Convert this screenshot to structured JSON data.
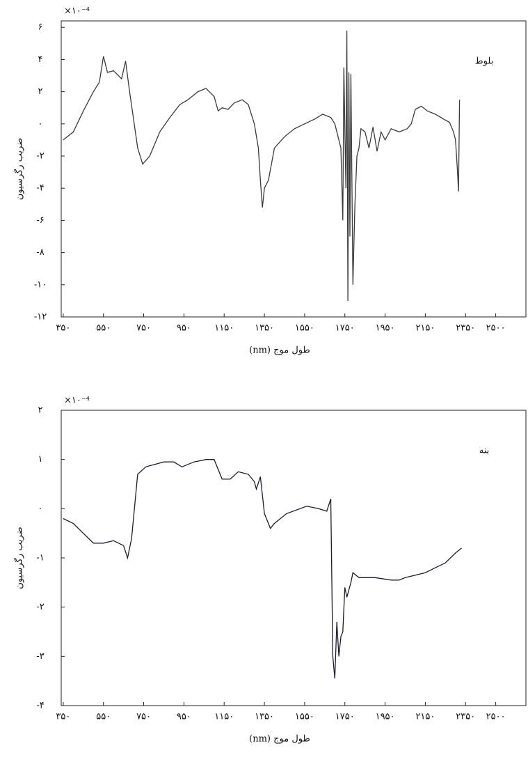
{
  "chart_data": [
    {
      "type": "line",
      "annotation": "بلوط",
      "multiplier": "×۱۰⁻⁴",
      "x_label": "طول موج (nm)",
      "y_label": "ضریب رگرسیون",
      "color": "#3a3a3a",
      "xlim": [
        340,
        2650
      ],
      "ylim": [
        -12,
        6.4
      ],
      "xticks": [
        {
          "value": 350,
          "label": "۳۵۰"
        },
        {
          "value": 550,
          "label": "۵۵۰"
        },
        {
          "value": 750,
          "label": "۷۵۰"
        },
        {
          "value": 950,
          "label": "۹۵۰"
        },
        {
          "value": 1150,
          "label": "۱۱۵۰"
        },
        {
          "value": 1350,
          "label": "۱۳۵۰"
        },
        {
          "value": 1550,
          "label": "۱۵۵۰"
        },
        {
          "value": 1750,
          "label": "۱۷۵۰"
        },
        {
          "value": 1950,
          "label": "۱۹۵۰"
        },
        {
          "value": 2150,
          "label": "۲۱۵۰"
        },
        {
          "value": 2350,
          "label": "۲۳۵۰"
        },
        {
          "value": 2500,
          "label": "۲۵۰۰"
        }
      ],
      "yticks": [
        {
          "value": 6,
          "label": "۶"
        },
        {
          "value": 4,
          "label": "۴"
        },
        {
          "value": 2,
          "label": "۲"
        },
        {
          "value": 0,
          "label": "۰"
        },
        {
          "value": -2,
          "label": "-۲"
        },
        {
          "value": -4,
          "label": "-۴"
        },
        {
          "value": -6,
          "label": "-۶"
        },
        {
          "value": -8,
          "label": "-۸"
        },
        {
          "value": -10,
          "label": "-۱۰"
        },
        {
          "value": -12,
          "label": "-۱۲"
        }
      ],
      "x": [
        350,
        400,
        450,
        500,
        530,
        550,
        570,
        600,
        640,
        660,
        680,
        720,
        745,
        780,
        830,
        880,
        930,
        970,
        1020,
        1060,
        1100,
        1120,
        1140,
        1170,
        1200,
        1240,
        1270,
        1300,
        1320,
        1330,
        1340,
        1350,
        1370,
        1400,
        1450,
        1500,
        1550,
        1600,
        1640,
        1680,
        1700,
        1730,
        1740,
        1745,
        1755,
        1760,
        1765,
        1770,
        1775,
        1780,
        1790,
        1800,
        1810,
        1820,
        1830,
        1850,
        1870,
        1890,
        1910,
        1930,
        1950,
        1980,
        2020,
        2060,
        2080,
        2100,
        2130,
        2160,
        2200,
        2240,
        2270,
        2290,
        2300,
        2310,
        2315,
        2320
      ],
      "values": [
        -1.0,
        -0.5,
        0.8,
        2.0,
        2.6,
        4.2,
        3.2,
        3.3,
        2.8,
        3.9,
        2.0,
        -1.5,
        -2.5,
        -2.0,
        -0.5,
        0.4,
        1.2,
        1.5,
        2.0,
        2.2,
        1.7,
        0.8,
        1.0,
        0.9,
        1.3,
        1.5,
        1.2,
        0.0,
        -1.5,
        -3.5,
        -5.2,
        -4.0,
        -3.5,
        -1.5,
        -0.8,
        -0.3,
        0.0,
        0.3,
        0.6,
        0.4,
        0.0,
        -1.5,
        -6.0,
        3.5,
        -4.0,
        5.8,
        -11.0,
        3.2,
        -7.0,
        3.1,
        -10.0,
        -5.0,
        -2.0,
        -1.5,
        -0.3,
        -0.5,
        -1.5,
        -0.2,
        -1.7,
        -0.5,
        -1.0,
        -0.3,
        -0.5,
        -0.3,
        0.0,
        0.9,
        1.1,
        0.8,
        0.6,
        0.3,
        0.1,
        -0.5,
        -1.0,
        -3.0,
        -4.2,
        1.5
      ]
    },
    {
      "type": "line",
      "annotation": "بنه",
      "multiplier": "×۱۰⁻⁴",
      "x_label": "طول موج (nm)",
      "y_label": "ضریب رگرسیون",
      "color": "#1c1c2e",
      "xlim": [
        340,
        2650
      ],
      "ylim": [
        -4,
        2
      ],
      "xticks": [
        {
          "value": 350,
          "label": "۳۵۰"
        },
        {
          "value": 550,
          "label": "۵۵۰"
        },
        {
          "value": 750,
          "label": "۷۵۰"
        },
        {
          "value": 950,
          "label": "۹۵۰"
        },
        {
          "value": 1150,
          "label": "۱۱۵۰"
        },
        {
          "value": 1350,
          "label": "۱۳۵۰"
        },
        {
          "value": 1550,
          "label": "۱۵۵۰"
        },
        {
          "value": 1750,
          "label": "۱۷۵۰"
        },
        {
          "value": 1950,
          "label": "۱۹۵۰"
        },
        {
          "value": 2150,
          "label": "۲۱۵۰"
        },
        {
          "value": 2350,
          "label": "۲۳۵۰"
        },
        {
          "value": 2500,
          "label": "۲۵۰۰"
        }
      ],
      "yticks": [
        {
          "value": 2,
          "label": "۲"
        },
        {
          "value": 1,
          "label": "۱"
        },
        {
          "value": 0,
          "label": "۰"
        },
        {
          "value": -1,
          "label": "-۱"
        },
        {
          "value": -2,
          "label": "-۲"
        },
        {
          "value": -3,
          "label": "-۳"
        },
        {
          "value": -4,
          "label": "-۴"
        }
      ],
      "x": [
        350,
        400,
        450,
        500,
        550,
        600,
        650,
        670,
        690,
        720,
        760,
        850,
        900,
        940,
        1000,
        1060,
        1100,
        1140,
        1180,
        1220,
        1270,
        1300,
        1310,
        1330,
        1350,
        1380,
        1400,
        1460,
        1560,
        1620,
        1660,
        1680,
        1690,
        1700,
        1710,
        1720,
        1730,
        1740,
        1750,
        1760,
        1780,
        1790,
        1820,
        1900,
        1980,
        2020,
        2050,
        2100,
        2150,
        2200,
        2250,
        2300,
        2330
      ],
      "values": [
        -0.2,
        -0.3,
        -0.5,
        -0.7,
        -0.7,
        -0.65,
        -0.75,
        -1.0,
        -0.6,
        0.7,
        0.85,
        0.95,
        0.95,
        0.85,
        0.95,
        1.0,
        1.0,
        0.6,
        0.6,
        0.75,
        0.7,
        0.55,
        0.4,
        0.65,
        -0.1,
        -0.4,
        -0.3,
        -0.1,
        0.05,
        0.0,
        -0.05,
        0.2,
        -3.0,
        -3.45,
        -2.3,
        -3.0,
        -2.6,
        -2.5,
        -1.6,
        -1.8,
        -1.5,
        -1.3,
        -1.4,
        -1.4,
        -1.45,
        -1.45,
        -1.4,
        -1.35,
        -1.3,
        -1.2,
        -1.1,
        -0.9,
        -0.8
      ]
    }
  ]
}
